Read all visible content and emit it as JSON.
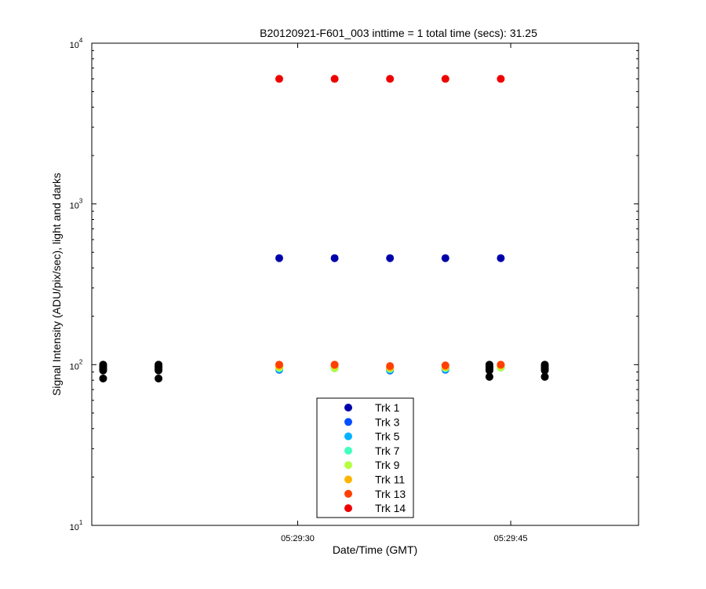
{
  "chart_data": {
    "type": "scatter",
    "title": "B20120921-F601_003 inttime = 1 total time (secs): 31.25",
    "xlabel": "Date/Time (GMT)",
    "ylabel": "Signal Intensity (ADU/pix/sec), light and darks",
    "yscale": "log",
    "ylim": [
      10,
      10000
    ],
    "xlim": [
      "05:29:15.5",
      "05:29:54"
    ],
    "y_ticks": [
      {
        "value": 10,
        "base": "10",
        "exp": "1"
      },
      {
        "value": 100,
        "base": "10",
        "exp": "2"
      },
      {
        "value": 1000,
        "base": "10",
        "exp": "3"
      },
      {
        "value": 10000,
        "base": "10",
        "exp": "4"
      }
    ],
    "x_ticks": [
      {
        "value": "05:29:30",
        "label": "05:29:30"
      },
      {
        "value": "05:29:45",
        "label": "05:29:45"
      }
    ],
    "grid": false,
    "legend_position": "bottom-center",
    "light_times": [
      "05:29:28.7",
      "05:29:32.6",
      "05:29:36.5",
      "05:29:40.4",
      "05:29:44.3"
    ],
    "series": [
      {
        "name": "Trk 1",
        "color": "#0000aa",
        "values": [
          460,
          460,
          460,
          460,
          460
        ]
      },
      {
        "name": "Trk 3",
        "color": "#0050ff",
        "values": [
          93,
          95,
          92,
          93,
          96
        ]
      },
      {
        "name": "Trk 5",
        "color": "#00b4ff",
        "values": [
          94,
          96,
          93,
          94,
          97
        ]
      },
      {
        "name": "Trk 7",
        "color": "#40ffc0",
        "values": [
          95,
          96,
          94,
          95,
          97
        ]
      },
      {
        "name": "Trk 9",
        "color": "#b4ff40",
        "values": [
          96,
          95,
          95,
          96,
          96
        ]
      },
      {
        "name": "Trk 11",
        "color": "#ffb400",
        "values": [
          98,
          99,
          96,
          97,
          99
        ]
      },
      {
        "name": "Trk 13",
        "color": "#ff4000",
        "values": [
          100,
          100,
          98,
          99,
          100
        ]
      },
      {
        "name": "Trk 14",
        "color": "#ee0000",
        "values": [
          6000,
          6000,
          6000,
          6000,
          6000
        ]
      }
    ],
    "darks": {
      "color": "#000000",
      "points": [
        {
          "x": "05:29:16.3",
          "y": 100
        },
        {
          "x": "05:29:16.3",
          "y": 98
        },
        {
          "x": "05:29:16.3",
          "y": 96
        },
        {
          "x": "05:29:16.3",
          "y": 94
        },
        {
          "x": "05:29:16.3",
          "y": 92
        },
        {
          "x": "05:29:16.3",
          "y": 82
        },
        {
          "x": "05:29:20.2",
          "y": 100
        },
        {
          "x": "05:29:20.2",
          "y": 98
        },
        {
          "x": "05:29:20.2",
          "y": 96
        },
        {
          "x": "05:29:20.2",
          "y": 94
        },
        {
          "x": "05:29:20.2",
          "y": 92
        },
        {
          "x": "05:29:20.2",
          "y": 82
        },
        {
          "x": "05:29:43.5",
          "y": 100
        },
        {
          "x": "05:29:43.5",
          "y": 98
        },
        {
          "x": "05:29:43.5",
          "y": 96
        },
        {
          "x": "05:29:43.5",
          "y": 94
        },
        {
          "x": "05:29:43.5",
          "y": 92
        },
        {
          "x": "05:29:43.5",
          "y": 84
        },
        {
          "x": "05:29:47.4",
          "y": 100
        },
        {
          "x": "05:29:47.4",
          "y": 98
        },
        {
          "x": "05:29:47.4",
          "y": 96
        },
        {
          "x": "05:29:47.4",
          "y": 94
        },
        {
          "x": "05:29:47.4",
          "y": 92
        },
        {
          "x": "05:29:47.4",
          "y": 84
        }
      ]
    }
  }
}
